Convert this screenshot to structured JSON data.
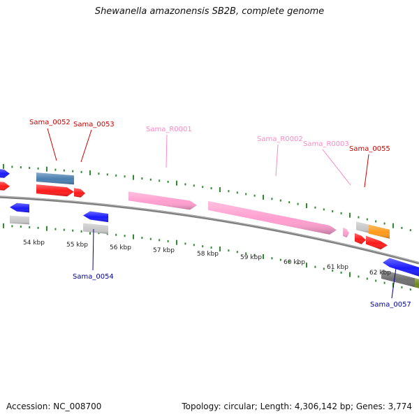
{
  "header": {
    "title": "Shewanella amazonensis SB2B, complete genome"
  },
  "footer": {
    "accession": "Accession: NC_008700",
    "summary": "Topology: circular; Length: 4,306,142 bp; Genes: 3,774"
  },
  "colors": {
    "backbone": "#808080",
    "tick": "#2e8b2e",
    "gene_red": "#ff1a1a",
    "gene_blue": "#1a1aff",
    "gene_pink": "#ff9ecf",
    "gene_steel": "#4a7fb0",
    "gene_gray": "#c8c8c8",
    "gene_dark_gray": "#707070",
    "gene_orange": "#ff9a1a",
    "gene_olive": "#6e8a1e",
    "label_red": "#cc0000",
    "label_pink": "#ff88c4",
    "label_blue": "#000099"
  },
  "scale": {
    "unit": "kbp",
    "labels": [
      "54 kbp",
      "55 kbp",
      "56 kbp",
      "57 kbp",
      "58 kbp",
      "59 kbp",
      "60 kbp",
      "61 kbp",
      "62 kbp"
    ]
  },
  "gene_labels": [
    {
      "text": "Sama_0052",
      "kind": "red"
    },
    {
      "text": "Sama_0053",
      "kind": "red"
    },
    {
      "text": "Sama_R0001",
      "kind": "pink"
    },
    {
      "text": "Sama_R0002",
      "kind": "pink"
    },
    {
      "text": "Sama_R0003",
      "kind": "pink"
    },
    {
      "text": "Sama_0055",
      "kind": "red"
    },
    {
      "text": "Sama_0054",
      "kind": "blue"
    },
    {
      "text": "Sama_0057",
      "kind": "blue"
    }
  ]
}
